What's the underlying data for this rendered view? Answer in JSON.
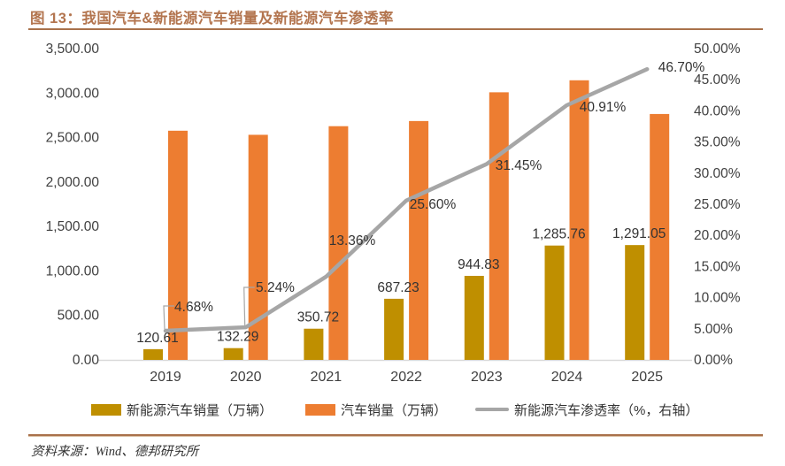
{
  "figure": {
    "title": "图 13：我国汽车&新能源汽车销量及新能源汽车渗透率",
    "source": "资料来源：Wind、德邦研究所"
  },
  "colors": {
    "title_brown": "#B3754F",
    "rule_brown": "#A9714B",
    "rule_light": "#D9BEA1",
    "nev_bar": "#BF8F00",
    "auto_bar": "#ED7D31",
    "line_gray": "#A6A6A6",
    "axis_text": "#404040",
    "axis_line": "#D9D9D9"
  },
  "chart_data": {
    "type": "bar",
    "subtype": "combo-bar-line",
    "title": "图 13：我国汽车&新能源汽车销量及新能源汽车渗透率",
    "categories": [
      "2019",
      "2020",
      "2021",
      "2022",
      "2023",
      "2024",
      "2025"
    ],
    "series": [
      {
        "name": "新能源汽车销量（万辆）",
        "type": "bar",
        "axis": "left",
        "color": "#BF8F00",
        "values": [
          120.61,
          132.29,
          350.72,
          687.23,
          944.83,
          1285.76,
          1291.05
        ],
        "data_labels": [
          "120.61",
          "132.29",
          "350.72",
          "687.23",
          "944.83",
          "1,285.76",
          "1,291.05"
        ]
      },
      {
        "name": "汽车销量（万辆）",
        "type": "bar",
        "axis": "left",
        "color": "#ED7D31",
        "estimated": true,
        "values": [
          2577,
          2531,
          2628,
          2686,
          3009,
          3144,
          2765
        ]
      },
      {
        "name": "新能源汽车渗透率（%，右轴）",
        "type": "line",
        "axis": "right",
        "color": "#A6A6A6",
        "values": [
          4.68,
          5.24,
          13.36,
          25.6,
          31.45,
          40.91,
          46.7
        ],
        "data_labels": [
          "4.68%",
          "5.24%",
          "13.36%",
          "25.60%",
          "31.45%",
          "40.91%",
          "46.70%"
        ]
      }
    ],
    "left_axis": {
      "min": 0,
      "max": 3500,
      "step": 500,
      "tick_labels": [
        "0.00",
        "500.00",
        "1,000.00",
        "1,500.00",
        "2,000.00",
        "2,500.00",
        "3,000.00",
        "3,500.00"
      ]
    },
    "right_axis": {
      "min": 0,
      "max": 0.5,
      "step": 0.05,
      "tick_labels": [
        "0.00%",
        "5.00%",
        "10.00%",
        "15.00%",
        "20.00%",
        "25.00%",
        "30.00%",
        "35.00%",
        "40.00%",
        "45.00%",
        "50.00%"
      ]
    },
    "legend_position": "bottom",
    "grid": "off"
  }
}
